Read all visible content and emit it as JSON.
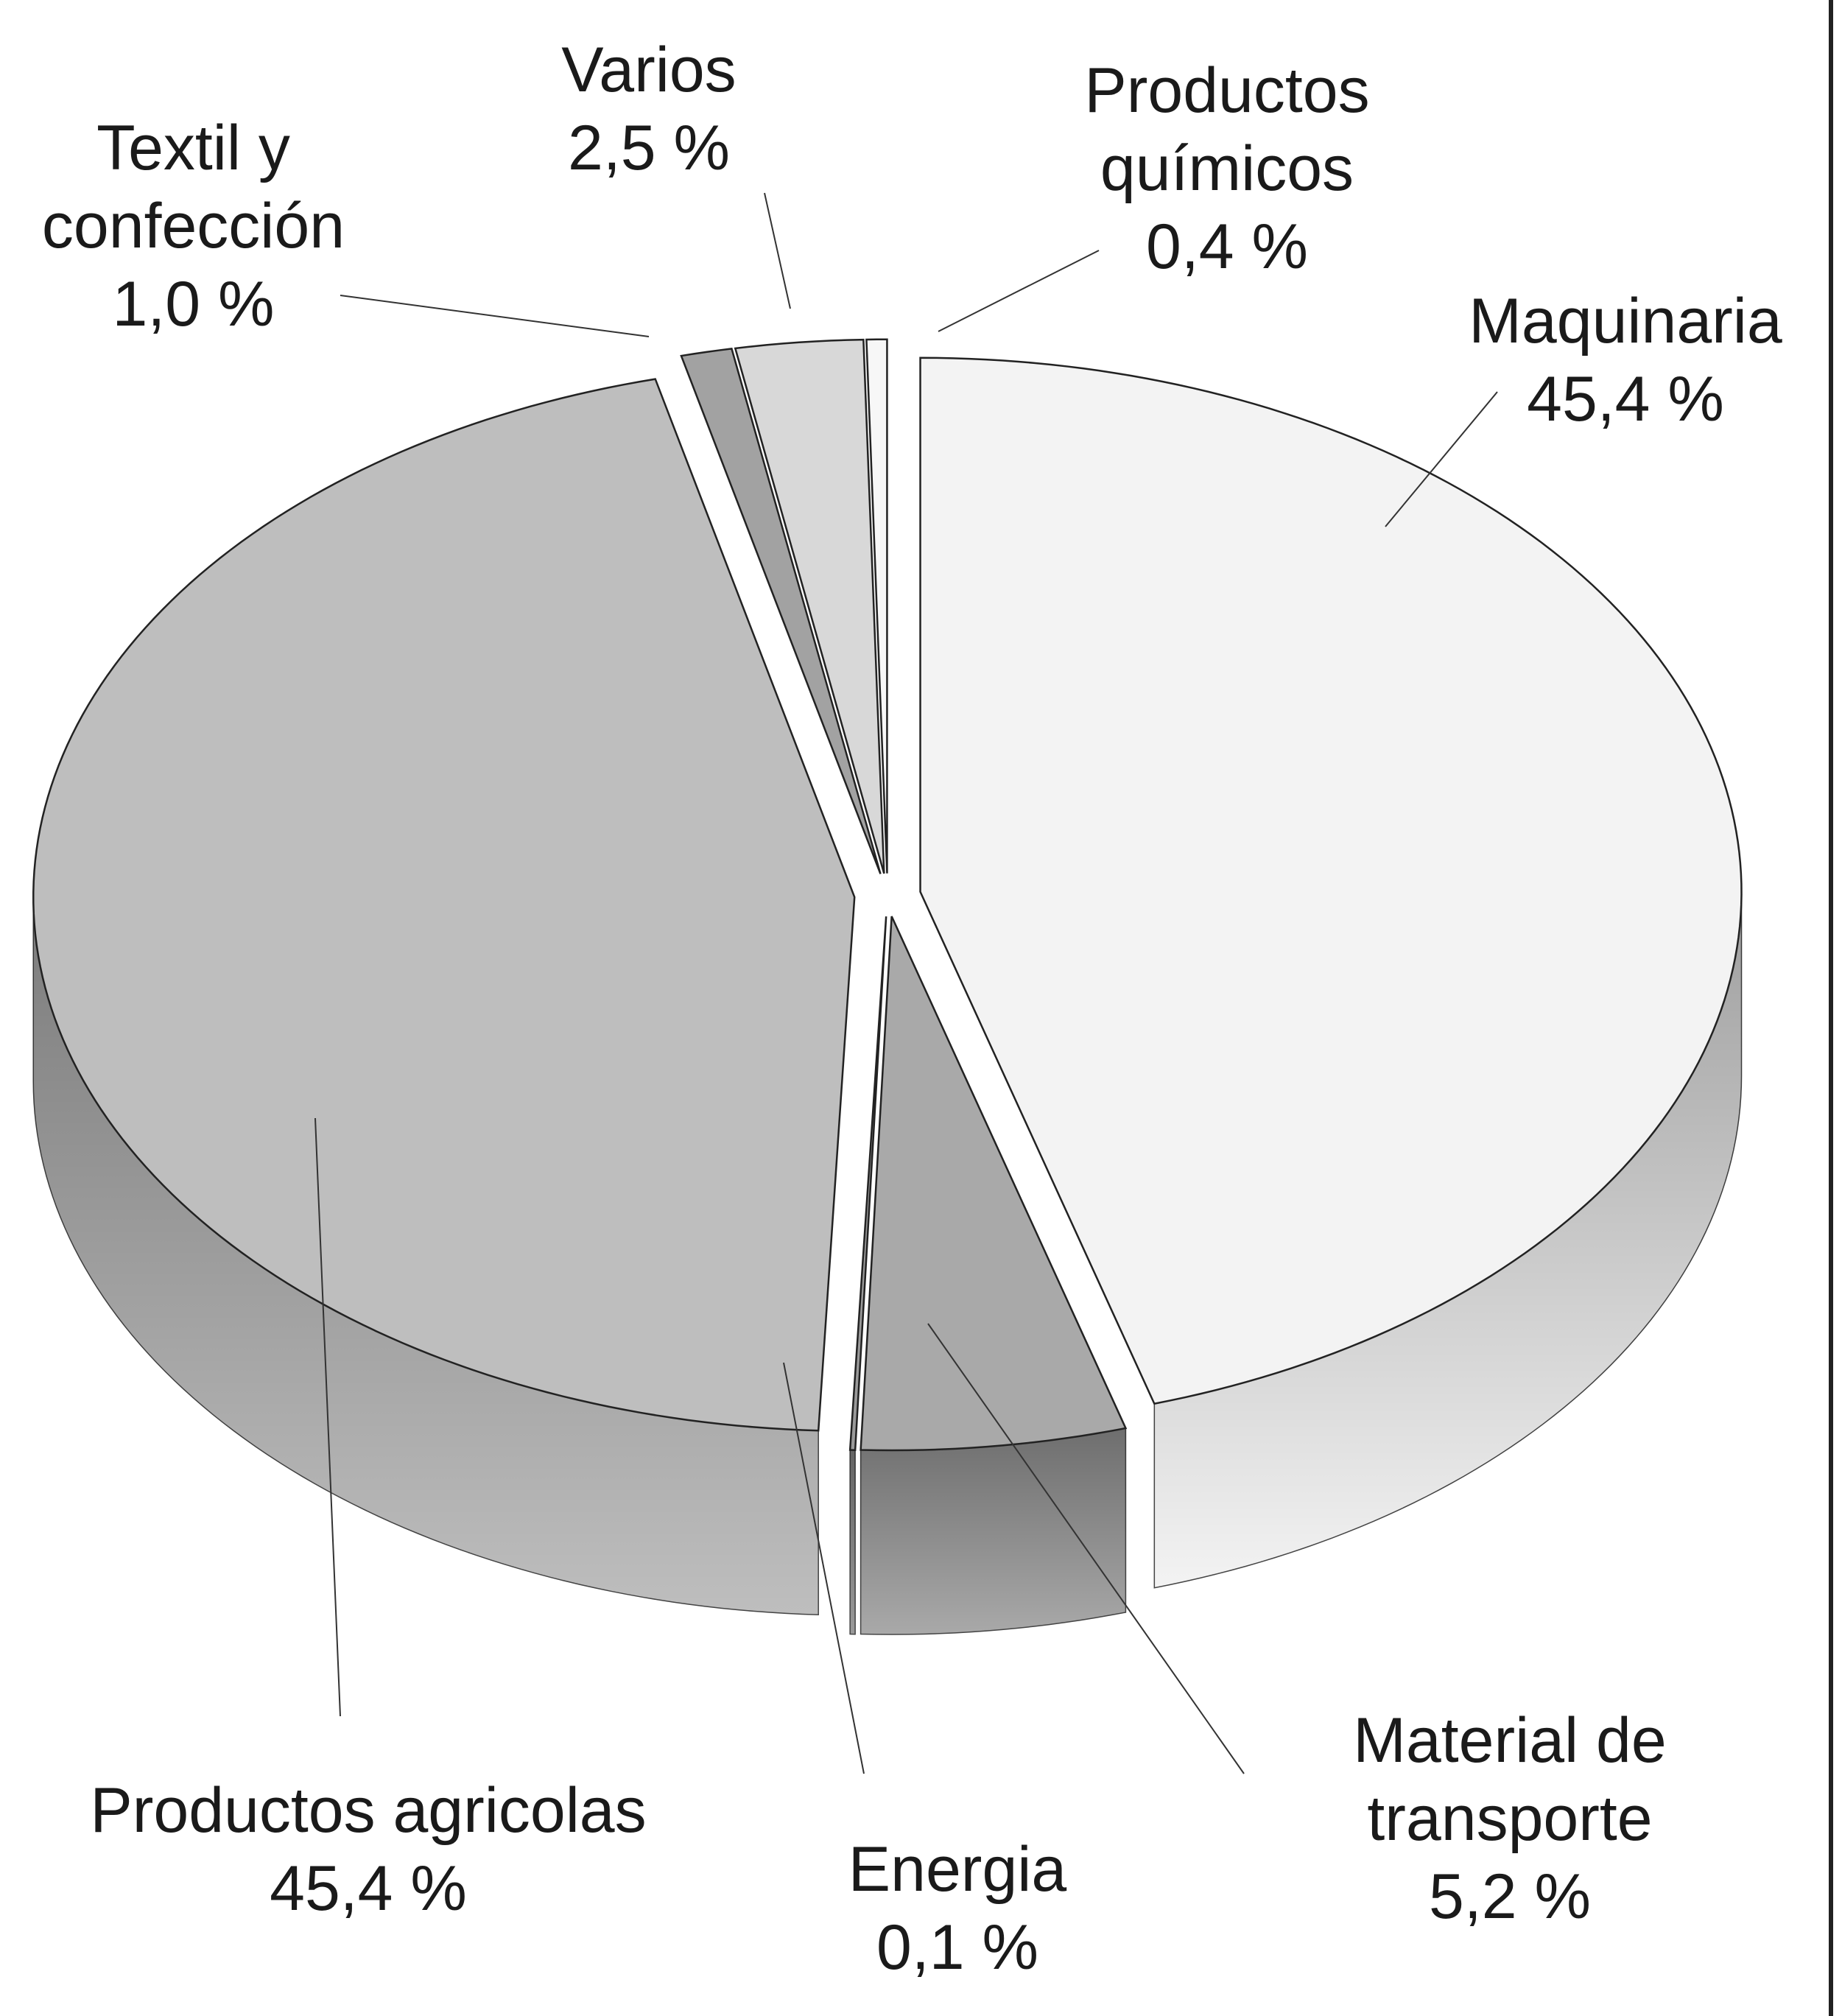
{
  "chart_data": {
    "type": "pie",
    "categories": [
      "Maquinaria",
      "Material de transporte",
      "Energia",
      "Productos agricolas",
      "Textil y confección",
      "Varios",
      "Productos químicos"
    ],
    "values": [
      45.4,
      5.2,
      0.1,
      45.4,
      1.0,
      2.5,
      0.4
    ],
    "value_labels": [
      "45,4 %",
      "5,2 %",
      "0,1 %",
      "45,4 %",
      "1,0 %",
      "2,5 %",
      "0,4 %"
    ],
    "colors": [
      "#f3f3f3",
      "#a9a9a9",
      "#9a9a9a",
      "#bebebe",
      "#a2a2a2",
      "#d8d8d8",
      "#f7f7f7"
    ]
  }
}
